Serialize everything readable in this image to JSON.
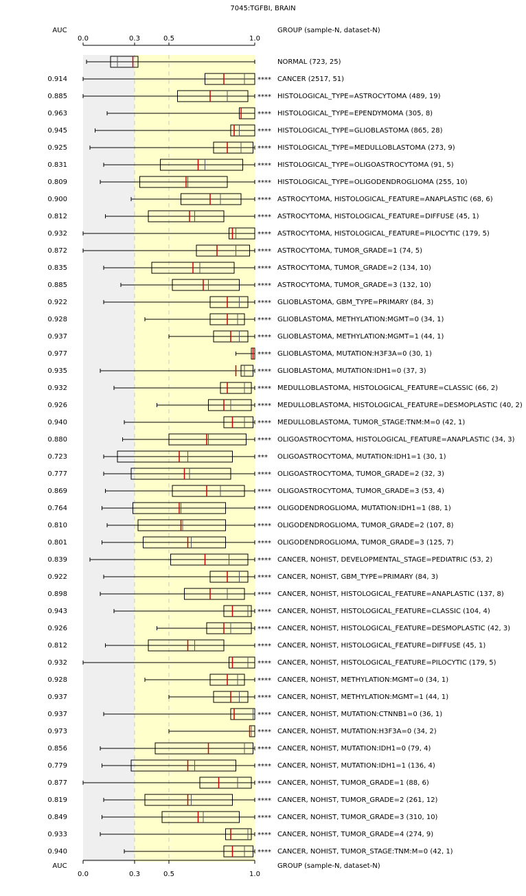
{
  "chart_data": {
    "type": "box",
    "title": "7045:TGFBI, BRAIN",
    "auc_header": "AUC",
    "group_header": "GROUP (sample-N, dataset-N)",
    "xlim": [
      0,
      1
    ],
    "xticks": [
      {
        "value": 0,
        "label": "0.0"
      },
      0.3,
      0.5,
      {
        "value": 1,
        "label": "1.0"
      }
    ],
    "box_color": "#000000",
    "median_color": "#cc0000",
    "mean_color": "#555555",
    "highlight_color": "#cc0000",
    "null_region_color": "#efefef",
    "region_color": "#ffffcc",
    "groups": [
      "NORMAL (723, 25)",
      "CANCER (2517, 51)",
      "HISTOLOGICAL_TYPE=ASTROCYTOMA (489, 19)",
      "HISTOLOGICAL_TYPE=EPENDYMOMA (305, 8)",
      "HISTOLOGICAL_TYPE=GLIOBLASTOMA (865, 28)",
      "HISTOLOGICAL_TYPE=MEDULLOBLASTOMA (273, 9)",
      "HISTOLOGICAL_TYPE=OLIGOASTROCYTOMA (91, 5)",
      "HISTOLOGICAL_TYPE=OLIGODENDROGLIOMA (255, 10)",
      "ASTROCYTOMA, HISTOLOGICAL_FEATURE=ANAPLASTIC (68, 6)",
      "ASTROCYTOMA, HISTOLOGICAL_FEATURE=DIFFUSE (45, 1)",
      "ASTROCYTOMA, HISTOLOGICAL_FEATURE=PILOCYTIC (179, 5)",
      "ASTROCYTOMA, TUMOR_GRADE=1 (74, 5)",
      "ASTROCYTOMA, TUMOR_GRADE=2 (134, 10)",
      "ASTROCYTOMA, TUMOR_GRADE=3 (132, 10)",
      "GLIOBLASTOMA, GBM_TYPE=PRIMARY (84, 3)",
      "GLIOBLASTOMA, METHYLATION:MGMT=0 (34, 1)",
      "GLIOBLASTOMA, METHYLATION:MGMT=1 (44, 1)",
      "GLIOBLASTOMA, MUTATION:H3F3A=0 (30, 1)",
      "GLIOBLASTOMA, MUTATION:IDH1=0 (37, 3)",
      "MEDULLOBLASTOMA, HISTOLOGICAL_FEATURE=CLASSIC (66, 2)",
      "MEDULLOBLASTOMA, HISTOLOGICAL_FEATURE=DESMOPLASTIC (40, 2)",
      "MEDULLOBLASTOMA, TUMOR_STAGE:TNM:M=0 (42, 1)",
      "OLIGOASTROCYTOMA, HISTOLOGICAL_FEATURE=ANAPLASTIC (34, 3)",
      "OLIGOASTROCYTOMA, MUTATION:IDH1=1 (30, 1)",
      "OLIGOASTROCYTOMA, TUMOR_GRADE=2 (32, 3)",
      "OLIGOASTROCYTOMA, TUMOR_GRADE=3 (53, 4)",
      "OLIGODENDROGLIOMA, MUTATION:IDH1=1 (88, 1)",
      "OLIGODENDROGLIOMA, TUMOR_GRADE=2 (107, 8)",
      "OLIGODENDROGLIOMA, TUMOR_GRADE=3 (125, 7)",
      "CANCER, NOHIST, DEVELOPMENTAL_STAGE=PEDIATRIC (53, 2)",
      "CANCER, NOHIST, GBM_TYPE=PRIMARY (84, 3)",
      "CANCER, NOHIST, HISTOLOGICAL_FEATURE=ANAPLASTIC (137, 8)",
      "CANCER, NOHIST, HISTOLOGICAL_FEATURE=CLASSIC (104, 4)",
      "CANCER, NOHIST, HISTOLOGICAL_FEATURE=DESMOPLASTIC (42, 3)",
      "CANCER, NOHIST, HISTOLOGICAL_FEATURE=DIFFUSE (45, 1)",
      "CANCER, NOHIST, HISTOLOGICAL_FEATURE=PILOCYTIC (179, 5)",
      "CANCER, NOHIST, METHYLATION:MGMT=0 (34, 1)",
      "CANCER, NOHIST, METHYLATION:MGMT=1 (44, 1)",
      "CANCER, NOHIST, MUTATION:CTNNB1=0 (36, 1)",
      "CANCER, NOHIST, MUTATION:H3F3A=0 (34, 2)",
      "CANCER, NOHIST, MUTATION:IDH1=0 (79, 4)",
      "CANCER, NOHIST, MUTATION:IDH1=1 (136, 4)",
      "CANCER, NOHIST, TUMOR_GRADE=1 (88, 6)",
      "CANCER, NOHIST, TUMOR_GRADE=2 (261, 12)",
      "CANCER, NOHIST, TUMOR_GRADE=3 (310, 10)",
      "CANCER, NOHIST, TUMOR_GRADE=4 (274, 9)",
      "CANCER, NOHIST, TUMOR_STAGE:TNM:M=0 (42, 1)"
    ],
    "auc": [
      null,
      "0.914",
      "0.885",
      "0.963",
      "0.945",
      "0.925",
      "0.831",
      "0.809",
      "0.900",
      "0.812",
      "0.932",
      "0.872",
      "0.835",
      "0.885",
      "0.922",
      "0.928",
      "0.937",
      "0.977",
      "0.935",
      "0.932",
      "0.926",
      "0.940",
      "0.880",
      "0.723",
      "0.777",
      "0.869",
      "0.764",
      "0.810",
      "0.801",
      "0.839",
      "0.922",
      "0.898",
      "0.943",
      "0.926",
      "0.812",
      "0.932",
      "0.928",
      "0.937",
      "0.937",
      "0.973",
      "0.856",
      "0.779",
      "0.877",
      "0.819",
      "0.849",
      "0.933",
      "0.940"
    ],
    "significance": [
      null,
      "****",
      "****",
      "****",
      "****",
      "****",
      "****",
      "****",
      "****",
      "****",
      "****",
      "****",
      "****",
      "****",
      "****",
      "****",
      "****",
      "****",
      "****",
      "****",
      "****",
      "****",
      "****",
      "***",
      "****",
      "****",
      "****",
      "****",
      "****",
      "****",
      "****",
      "****",
      "****",
      "****",
      "****",
      "****",
      "****",
      "****",
      "****",
      "****",
      "****",
      "****",
      "****",
      "****",
      "****",
      "****",
      "****"
    ],
    "min": [
      0.02,
      0.0,
      0.0,
      0.14,
      0.07,
      0.04,
      0.12,
      0.1,
      0.28,
      0.13,
      0.0,
      0.0,
      0.12,
      0.22,
      0.12,
      0.36,
      0.5,
      0.89,
      0.1,
      0.18,
      0.43,
      0.24,
      0.23,
      0.12,
      0.12,
      0.13,
      0.11,
      0.14,
      0.11,
      0.04,
      0.12,
      0.1,
      0.18,
      0.43,
      0.13,
      0.0,
      0.36,
      0.5,
      0.12,
      0.5,
      0.1,
      0.11,
      0.0,
      0.12,
      0.11,
      0.1,
      0.24
    ],
    "q1": [
      0.16,
      0.71,
      0.55,
      0.91,
      0.86,
      0.76,
      0.45,
      0.33,
      0.57,
      0.38,
      0.85,
      0.66,
      0.4,
      0.52,
      0.74,
      0.74,
      0.76,
      0.98,
      0.92,
      0.8,
      0.73,
      0.82,
      0.5,
      0.2,
      0.28,
      0.52,
      0.29,
      0.32,
      0.35,
      0.51,
      0.74,
      0.59,
      0.82,
      0.72,
      0.38,
      0.85,
      0.74,
      0.76,
      0.86,
      0.97,
      0.42,
      0.28,
      0.68,
      0.36,
      0.46,
      0.83,
      0.82
    ],
    "median": [
      0.29,
      0.82,
      0.74,
      0.92,
      0.88,
      0.84,
      0.67,
      0.6,
      0.74,
      0.62,
      0.87,
      0.78,
      0.64,
      0.7,
      0.84,
      0.84,
      0.86,
      0.99,
      0.89,
      0.84,
      0.82,
      0.87,
      0.72,
      0.56,
      0.59,
      0.72,
      0.56,
      0.57,
      0.61,
      0.71,
      0.84,
      0.74,
      0.87,
      0.82,
      0.61,
      0.87,
      0.84,
      0.86,
      0.88,
      0.97,
      0.73,
      0.61,
      0.79,
      0.61,
      0.67,
      0.86,
      0.87
    ],
    "mean": [
      0.2,
      0.94,
      0.84,
      0.92,
      0.91,
      0.92,
      0.71,
      0.61,
      0.8,
      0.65,
      0.89,
      0.89,
      0.68,
      0.73,
      0.91,
      0.9,
      0.91,
      0.99,
      0.94,
      0.94,
      0.86,
      0.94,
      0.73,
      0.61,
      0.62,
      0.8,
      0.57,
      0.58,
      0.63,
      0.85,
      0.91,
      0.84,
      0.96,
      0.86,
      0.65,
      0.96,
      0.9,
      0.91,
      0.99,
      0.98,
      0.94,
      0.65,
      0.9,
      0.63,
      0.7,
      0.96,
      0.94
    ],
    "q3": [
      0.32,
      1.0,
      0.96,
      1.0,
      1.0,
      0.99,
      0.93,
      0.84,
      0.92,
      0.82,
      1.0,
      0.97,
      0.88,
      0.91,
      0.96,
      0.94,
      0.96,
      1.0,
      0.99,
      0.98,
      0.98,
      0.99,
      0.95,
      0.87,
      0.86,
      0.94,
      0.83,
      0.83,
      0.83,
      0.96,
      0.96,
      0.94,
      0.98,
      0.98,
      0.82,
      1.0,
      0.94,
      0.96,
      1.0,
      1.0,
      0.99,
      0.89,
      0.98,
      0.87,
      0.91,
      0.98,
      0.99
    ],
    "max": [
      1.0,
      1.0,
      1.0,
      1.0,
      1.0,
      1.0,
      1.0,
      1.0,
      1.0,
      1.0,
      1.0,
      1.0,
      1.0,
      1.0,
      1.0,
      1.0,
      1.0,
      1.0,
      1.0,
      1.0,
      1.0,
      1.0,
      1.0,
      1.0,
      1.0,
      1.0,
      1.0,
      1.0,
      1.0,
      1.0,
      1.0,
      1.0,
      1.0,
      1.0,
      1.0,
      1.0,
      1.0,
      1.0,
      1.0,
      1.0,
      1.0,
      1.0,
      1.0,
      1.0,
      1.0,
      1.0,
      1.0
    ]
  }
}
